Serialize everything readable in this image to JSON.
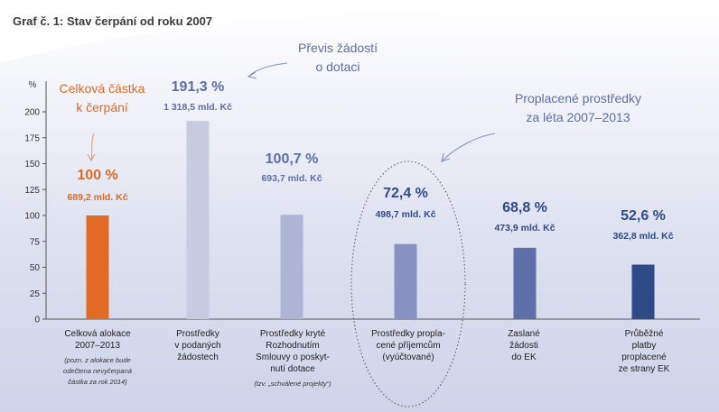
{
  "chart_data": {
    "type": "bar",
    "title": "Graf č. 1: Stav čerpání od roku 2007",
    "ylabel": "%",
    "ylim": [
      0,
      200
    ],
    "yticks": [
      0,
      25,
      50,
      75,
      100,
      125,
      150,
      175,
      200
    ],
    "grid": false,
    "categories": [
      {
        "lines": [
          "Celková alokace",
          "2007–2013"
        ],
        "note": [
          "(pozn. z alokace bude",
          "odečtena nevyčerpaná",
          "částka za rok 2014)"
        ]
      },
      {
        "lines": [
          "Prostředky",
          "v podaných",
          "žádostech"
        ],
        "note": []
      },
      {
        "lines": [
          "Prostředky kryté",
          "Rozhodnutím",
          "Smlouvy o poskyt-",
          "nutí dotace"
        ],
        "note": [
          "(tzv. „schválené projekty“)"
        ]
      },
      {
        "lines": [
          "Prostředky propla-",
          "cené příjemcům",
          "(vyúčtované)"
        ],
        "note": []
      },
      {
        "lines": [
          "Zaslané",
          "žádosti",
          "do EK"
        ],
        "note": []
      },
      {
        "lines": [
          "Průběžné",
          "platby",
          "proplacené",
          "ze strany EK"
        ],
        "note": []
      }
    ],
    "values": [
      100,
      191.3,
      100.7,
      72.4,
      68.8,
      52.6
    ],
    "value_labels": [
      "100 %",
      "191,3 %",
      "100,7 %",
      "72,4 %",
      "68,8 %",
      "52,6 %"
    ],
    "amount_labels": [
      "689,2 mld. Kč",
      "1 318,5 mld. Kč",
      "693,7 mld. Kč",
      "498,7 mld. Kč",
      "473,9 mld. Kč",
      "362,8 mld. Kč"
    ],
    "bar_colors": [
      "#e06a26",
      "#c8cbe2",
      "#aeb4d6",
      "#8792c2",
      "#5d6ea8",
      "#2f4a86"
    ],
    "label_colors": [
      "#e06a26",
      "#5d6ea8",
      "#5d6ea8",
      "#2f4a86",
      "#2f4a86",
      "#2f4a86"
    ],
    "annotations": [
      {
        "lines": [
          "Celková částka",
          "k čerpání"
        ],
        "color": "#e06a26"
      },
      {
        "lines": [
          "Převis žádostí",
          "o dotaci"
        ],
        "color": "#5d6ea8"
      },
      {
        "lines": [
          "Proplacené prostředky",
          "za léta 2007–2013"
        ],
        "color": "#5d6ea8"
      }
    ]
  }
}
